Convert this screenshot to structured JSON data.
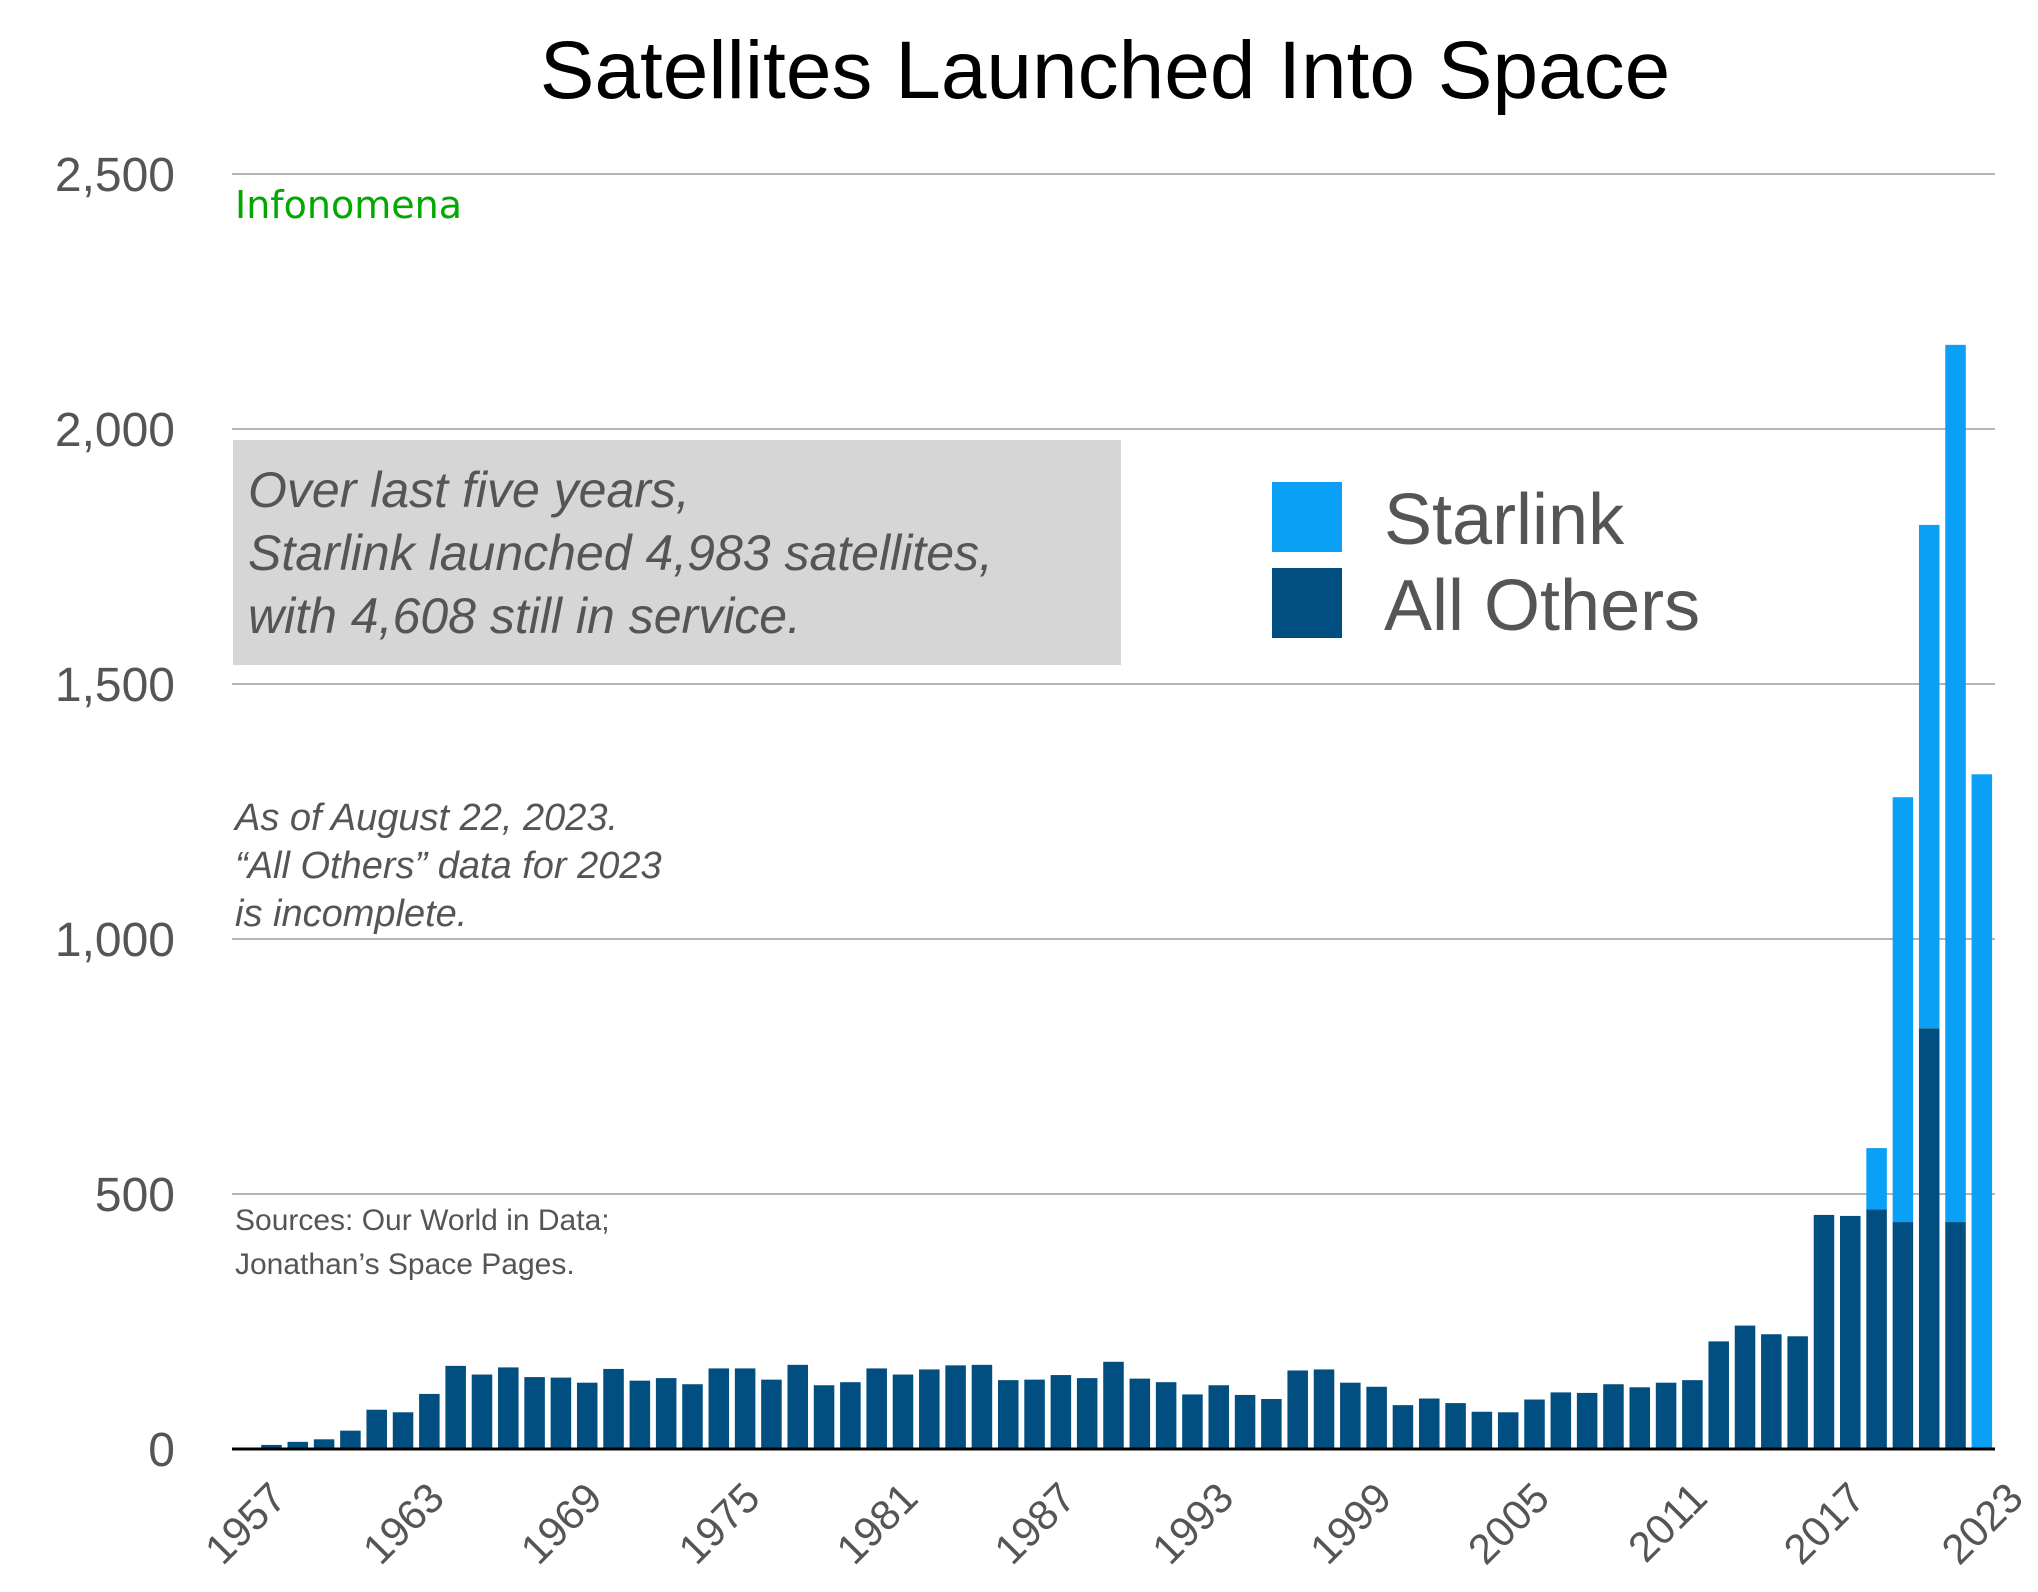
{
  "colors": {
    "starlink": "#0aa0f5",
    "others": "#004f80",
    "callout_bg": "#d6d6d6",
    "brand": "#00a800"
  },
  "brand": "Infonomena",
  "callout": {
    "lines": [
      "Over last five years,",
      "Starlink launched 4,983 satellites,",
      "with 4,608 still in service."
    ]
  },
  "note": {
    "lines": [
      "As of August 22, 2023.",
      "“All Others” data for 2023",
      "is incomplete."
    ]
  },
  "sources": {
    "lines": [
      "Sources: Our World in Data;",
      "Jonathan’s Space Pages."
    ]
  },
  "chart_data": {
    "type": "bar",
    "stacked": true,
    "title": "Satellites Launched Into Space",
    "xlabel": "",
    "ylabel": "",
    "ylim": [
      0,
      2500
    ],
    "yticks": [
      0,
      500,
      1000,
      1500,
      2000,
      2500
    ],
    "ytick_labels": [
      "0",
      "500",
      "1,000",
      "1,500",
      "2,000",
      "2,500"
    ],
    "xtick_labels": [
      "1957",
      "1963",
      "1969",
      "1975",
      "1981",
      "1987",
      "1993",
      "1999",
      "2005",
      "2011",
      "2017",
      "2023"
    ],
    "grid": true,
    "legend": "right",
    "categories": [
      1957,
      1958,
      1959,
      1960,
      1961,
      1962,
      1963,
      1964,
      1965,
      1966,
      1967,
      1968,
      1969,
      1970,
      1971,
      1972,
      1973,
      1974,
      1975,
      1976,
      1977,
      1978,
      1979,
      1980,
      1981,
      1982,
      1983,
      1984,
      1985,
      1986,
      1987,
      1988,
      1989,
      1990,
      1991,
      1992,
      1993,
      1994,
      1995,
      1996,
      1997,
      1998,
      1999,
      2000,
      2001,
      2002,
      2003,
      2004,
      2005,
      2006,
      2007,
      2008,
      2009,
      2010,
      2011,
      2012,
      2013,
      2014,
      2015,
      2016,
      2017,
      2018,
      2019,
      2020,
      2021,
      2022,
      2023
    ],
    "series": [
      {
        "name": "All Others",
        "values": [
          2,
          8,
          14,
          19,
          36,
          77,
          72,
          108,
          163,
          146,
          160,
          141,
          140,
          130,
          157,
          134,
          139,
          127,
          158,
          158,
          136,
          165,
          125,
          131,
          158,
          146,
          156,
          164,
          165,
          135,
          136,
          145,
          139,
          171,
          138,
          131,
          107,
          125,
          106,
          98,
          154,
          156,
          130,
          122,
          86,
          99,
          90,
          73,
          72,
          97,
          111,
          110,
          127,
          121,
          130,
          135,
          211,
          242,
          225,
          221,
          459,
          457,
          470,
          445,
          825,
          445,
          0
        ]
      },
      {
        "name": "Starlink",
        "values": [
          0,
          0,
          0,
          0,
          0,
          0,
          0,
          0,
          0,
          0,
          0,
          0,
          0,
          0,
          0,
          0,
          0,
          0,
          0,
          0,
          0,
          0,
          0,
          0,
          0,
          0,
          0,
          0,
          0,
          0,
          0,
          0,
          0,
          0,
          0,
          0,
          0,
          0,
          0,
          0,
          0,
          0,
          0,
          0,
          0,
          0,
          0,
          0,
          0,
          0,
          0,
          0,
          0,
          0,
          0,
          0,
          0,
          0,
          0,
          0,
          0,
          0,
          120,
          833,
          987,
          1720,
          1323
        ]
      }
    ]
  }
}
